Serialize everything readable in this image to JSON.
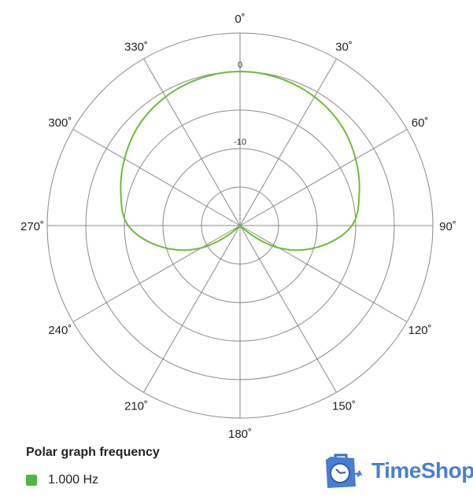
{
  "chart_data": {
    "type": "polar",
    "title": "Polar graph frequency",
    "angle_ticks": [
      "0˚",
      "30˚",
      "60˚",
      "90˚",
      "120˚",
      "150˚",
      "180˚",
      "210˚",
      "240˚",
      "270˚",
      "300˚",
      "330˚"
    ],
    "angle_values": [
      0,
      30,
      60,
      90,
      120,
      150,
      180,
      210,
      240,
      270,
      300,
      330
    ],
    "radial_range_db": [
      -20,
      5
    ],
    "radial_rings_db": [
      -15,
      -10,
      -5,
      0,
      5
    ],
    "radial_labels": [
      {
        "db": 0,
        "text": "0"
      },
      {
        "db": -10,
        "text": "-10"
      }
    ],
    "grid": true,
    "legend_placement": "bottom-left",
    "series": [
      {
        "name": "1.000 Hz",
        "color": "#6dbb3c",
        "angles": [
          0,
          15,
          30,
          45,
          60,
          75,
          90,
          105,
          120,
          135,
          150,
          165,
          180,
          195,
          210,
          225,
          240,
          255,
          270,
          285,
          300,
          315,
          330,
          345
        ],
        "values_db": [
          0,
          -0.2,
          -0.7,
          -1.5,
          -2.7,
          -4,
          -5.5,
          -9.4,
          -14.2,
          -20,
          -20,
          -20,
          -20,
          -20,
          -20,
          -20,
          -14.2,
          -9.4,
          -5.5,
          -4,
          -2.7,
          -1.5,
          -0.7,
          -0.2
        ]
      }
    ]
  },
  "legend": {
    "title": "Polar graph frequency",
    "items": [
      {
        "label": "1.000 Hz",
        "color": "#4cb848"
      }
    ]
  },
  "logo": {
    "text": "TimeShop",
    "color": "#4a80d3"
  }
}
